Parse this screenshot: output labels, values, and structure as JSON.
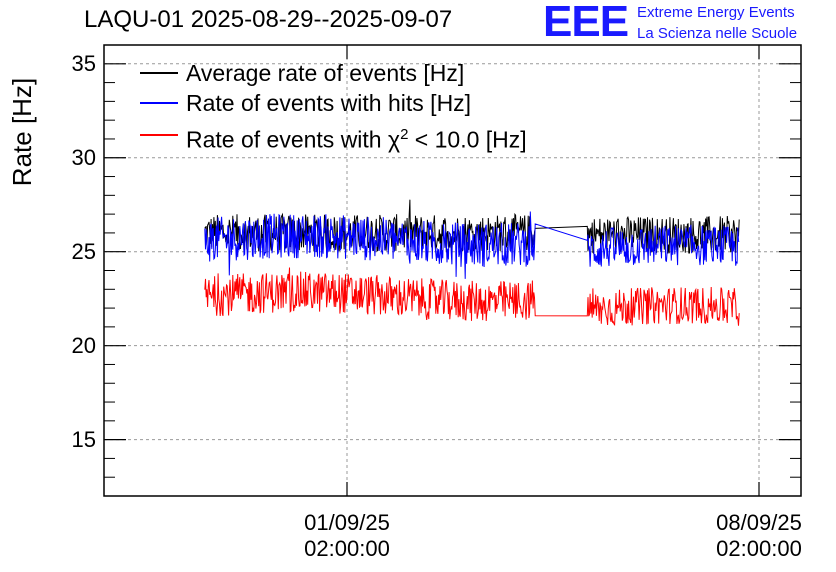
{
  "header": {
    "title": "LAQU-01 2025-08-29--2025-09-07",
    "logo": "EEE",
    "logo_line1": "Extreme Energy Events",
    "logo_line2": "La Scienza nelle Scuole"
  },
  "chart_data": {
    "type": "line",
    "ylabel": "Rate [Hz]",
    "ylim": [
      12,
      36
    ],
    "yticks": [
      15,
      20,
      25,
      30,
      35
    ],
    "xticks": [
      {
        "date": "01/09/25",
        "time": "02:00:00"
      },
      {
        "date": "08/09/25",
        "time": "02:00:00"
      }
    ],
    "grid": true,
    "legend_position": "top-left",
    "series": [
      {
        "name": "Average rate of events [Hz]",
        "color": "#000000",
        "segments": [
          {
            "x_start": "2025-08-29 16:00",
            "x_end": "2025-09-04 07:00",
            "mean": 26.0,
            "spread": 1.0
          },
          {
            "x_start": "2025-09-05 04:00",
            "x_end": "2025-09-07 18:00",
            "mean": 25.9,
            "spread": 1.0
          }
        ]
      },
      {
        "name": "Rate of events with hits [Hz]",
        "color": "#0000ff",
        "segments": [
          {
            "x_start": "2025-08-29 16:00",
            "x_end": "2025-09-04 07:00",
            "mean": 25.6,
            "spread": 1.2
          },
          {
            "x_start": "2025-09-05 04:00",
            "x_end": "2025-09-07 18:00",
            "mean": 25.1,
            "spread": 1.1
          }
        ]
      },
      {
        "name_parts": [
          "Rate of events with ",
          "χ",
          "2",
          " < 10.0 [Hz]"
        ],
        "color": "#ff0000",
        "segments": [
          {
            "x_start": "2025-08-29 16:00",
            "x_end": "2025-09-04 07:00",
            "mean": 22.6,
            "spread": 1.1
          },
          {
            "x_start": "2025-09-05 04:00",
            "x_end": "2025-09-07 18:00",
            "mean": 21.9,
            "spread": 1.0
          }
        ]
      }
    ]
  }
}
